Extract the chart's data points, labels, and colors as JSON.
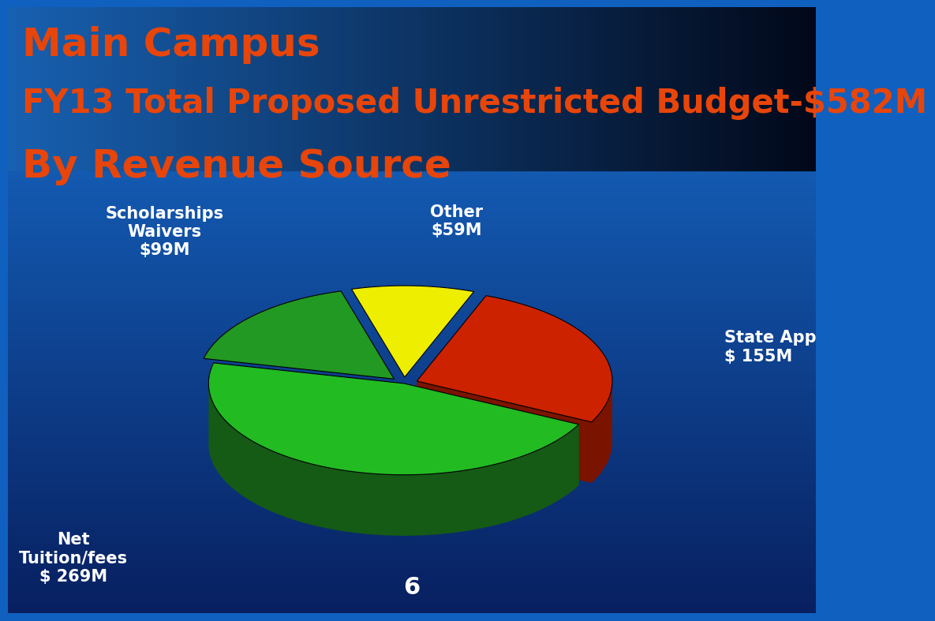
{
  "title_line1": "Main Campus",
  "title_line2": "FY13 Total Proposed Unrestricted Budget-$582M",
  "title_line3": "By Revenue Source",
  "title_color": "#e8450a",
  "slices": [
    {
      "label": "Net\nTuition/fees\n$ 269M",
      "value": 269,
      "color": "#22bb22",
      "dark": "#155a15",
      "explode": 0.0
    },
    {
      "label": "State App\n$ 155M",
      "value": 155,
      "color": "#cc2200",
      "dark": "#7a1400",
      "explode": 0.07
    },
    {
      "label": "Other\n$59M",
      "value": 59,
      "color": "#eeee00",
      "dark": "#999900",
      "explode": 0.07
    },
    {
      "label": "Scholarships\nWaivers\n$99M",
      "value": 99,
      "color": "#229922",
      "dark": "#135513",
      "explode": 0.07
    }
  ],
  "page_number": "6",
  "label_fontsize": 15,
  "title_fontsize1": 36,
  "title_fontsize2": 30,
  "title_fontsize3": 36
}
